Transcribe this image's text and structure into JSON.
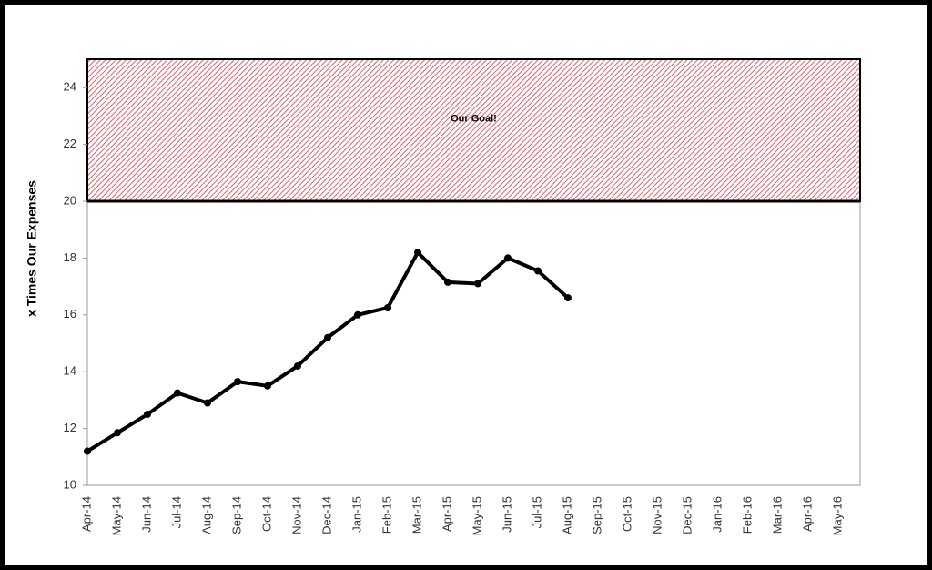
{
  "chart_data": {
    "type": "line",
    "ylabel": "x Times Our Expenses",
    "annotation": "Our Goal!",
    "goal_range": [
      20,
      25
    ],
    "goal_color": "#e0606a",
    "categories": [
      "Apr-14",
      "May-14",
      "Jun-14",
      "Jul-14",
      "Aug-14",
      "Sep-14",
      "Oct-14",
      "Nov-14",
      "Dec-14",
      "Jan-15",
      "Feb-15",
      "Mar-15",
      "Apr-15",
      "May-15",
      "Jun-15",
      "Jul-15",
      "Aug-15",
      "Sep-15",
      "Oct-15",
      "Nov-15",
      "Dec-15",
      "Jan-16",
      "Feb-16",
      "Mar-16",
      "Apr-16",
      "May-16"
    ],
    "series": [
      {
        "color": "#000000",
        "values": [
          11.2,
          11.85,
          12.5,
          13.25,
          12.9,
          13.65,
          13.5,
          14.2,
          15.2,
          16.0,
          16.25,
          18.2,
          17.15,
          17.1,
          18.0,
          17.55,
          16.6,
          null,
          null,
          null,
          null,
          null,
          null,
          null,
          null,
          null
        ]
      }
    ],
    "ylim": [
      10,
      25
    ],
    "yticks": [
      10,
      12,
      14,
      16,
      18,
      20,
      22,
      24
    ]
  }
}
